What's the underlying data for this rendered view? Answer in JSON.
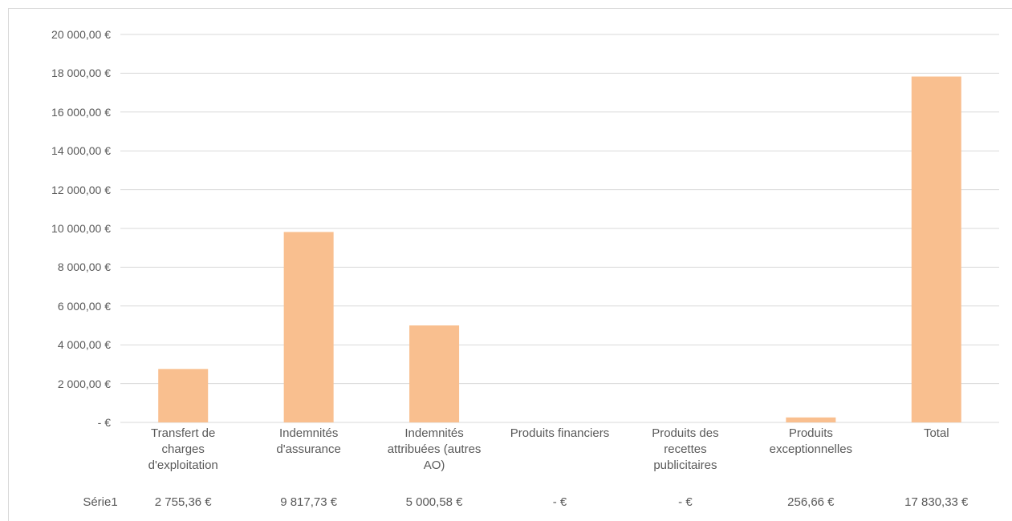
{
  "chart_data": {
    "type": "bar",
    "categories": [
      "Transfert de charges d'exploitation",
      "Indemnités d'assurance",
      "Indemnités attribuées (autres AO)",
      "Produits financiers",
      "Produits des recettes publicitaires",
      "Produits exceptionnelles",
      "Total"
    ],
    "series": [
      {
        "name": "Série1",
        "color": "#f9bf8f",
        "values": [
          2755.36,
          9817.73,
          5000.58,
          0,
          0,
          256.66,
          17830.33
        ],
        "value_labels": [
          "2 755,36 €",
          "9 817,73 €",
          "5 000,58 €",
          "- €",
          "- €",
          "256,66 €",
          "17 830,33 €"
        ]
      }
    ],
    "ylim": [
      0,
      20000
    ],
    "yticks": [
      {
        "value": 0,
        "label": "- €"
      },
      {
        "value": 2000,
        "label": "2 000,00 €"
      },
      {
        "value": 4000,
        "label": "4 000,00 €"
      },
      {
        "value": 6000,
        "label": "6 000,00 €"
      },
      {
        "value": 8000,
        "label": "8 000,00 €"
      },
      {
        "value": 10000,
        "label": "10 000,00 €"
      },
      {
        "value": 12000,
        "label": "12 000,00 €"
      },
      {
        "value": 14000,
        "label": "14 000,00 €"
      },
      {
        "value": 16000,
        "label": "16 000,00 €"
      },
      {
        "value": 18000,
        "label": "18 000,00 €"
      },
      {
        "value": 20000,
        "label": "20 000,00 €"
      }
    ],
    "grid": true
  }
}
